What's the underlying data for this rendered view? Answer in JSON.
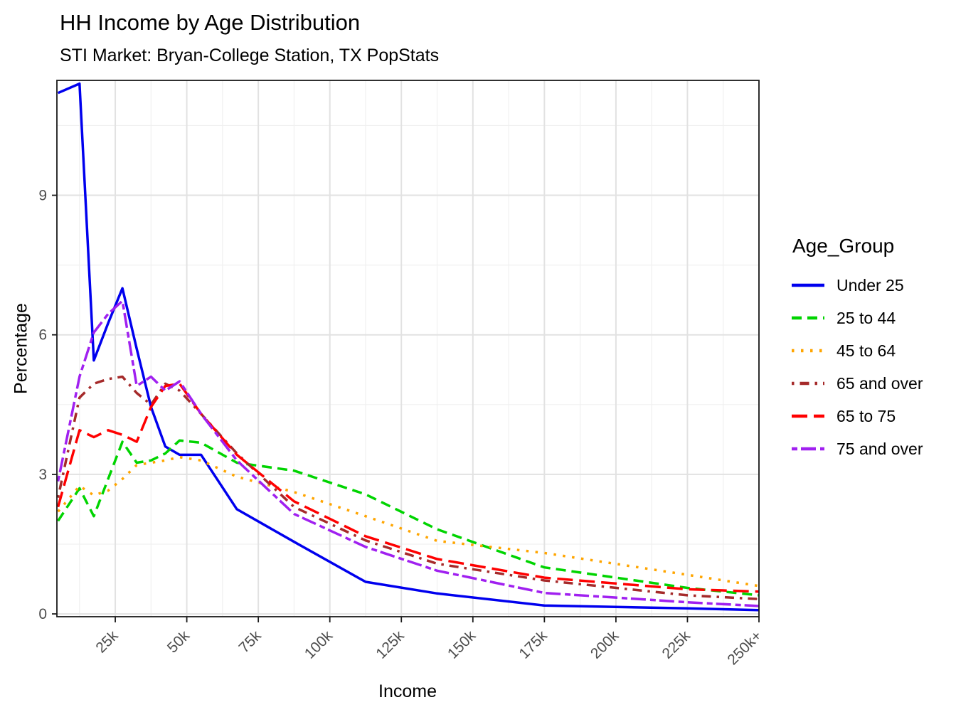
{
  "chart_data": {
    "type": "line",
    "title": "HH Income by Age Distribution",
    "subtitle": "STI Market: Bryan-College Station, TX PopStats",
    "xlabel": "Income",
    "ylabel": "Percentage",
    "legend_title": "Age_Group",
    "legend_position": "right",
    "grid": true,
    "x_unit": "thousands of dollars",
    "x_thousands": [
      5,
      12.5,
      17.5,
      22.5,
      27.5,
      32.5,
      37.5,
      42.5,
      47.5,
      55,
      67.5,
      87.5,
      112.5,
      137.5,
      175,
      225,
      250
    ],
    "x_range": [
      4.6,
      250
    ],
    "y_range": [
      -0.06,
      11.47
    ],
    "x_ticks": [
      {
        "value": 25,
        "label": "25k"
      },
      {
        "value": 50,
        "label": "50k"
      },
      {
        "value": 75,
        "label": "75k"
      },
      {
        "value": 100,
        "label": "100k"
      },
      {
        "value": 125,
        "label": "125k"
      },
      {
        "value": 150,
        "label": "150k"
      },
      {
        "value": 175,
        "label": "175k"
      },
      {
        "value": 200,
        "label": "200k"
      },
      {
        "value": 225,
        "label": "225k"
      },
      {
        "value": 250,
        "label": "250k+"
      }
    ],
    "y_ticks": [
      {
        "value": 0,
        "label": "0"
      },
      {
        "value": 3,
        "label": "3"
      },
      {
        "value": 6,
        "label": "6"
      },
      {
        "value": 9,
        "label": "9"
      }
    ],
    "x_minor": [
      12.5,
      37.5,
      62.5,
      87.5,
      112.5,
      137.5,
      162.5,
      187.5,
      212.5,
      237.5
    ],
    "y_minor": [
      1.5,
      4.5,
      7.5,
      10.5
    ],
    "series": [
      {
        "name": "Under 25",
        "color": "#0000EE",
        "linetype": "solid",
        "values": [
          11.2,
          11.4,
          5.45,
          6.25,
          7.0,
          5.7,
          4.45,
          3.6,
          3.42,
          3.42,
          2.25,
          1.55,
          0.69,
          0.44,
          0.18,
          0.12,
          0.08
        ]
      },
      {
        "name": "25 to 44",
        "color": "#00D400",
        "linetype": "dashed",
        "values": [
          2.0,
          2.7,
          2.1,
          2.9,
          3.7,
          3.25,
          3.3,
          3.45,
          3.73,
          3.68,
          3.25,
          3.08,
          2.57,
          1.82,
          1.0,
          0.56,
          0.4
        ]
      },
      {
        "name": "45 to 64",
        "color": "#FFA500",
        "linetype": "dotted",
        "values": [
          2.2,
          2.75,
          2.55,
          2.65,
          2.9,
          3.2,
          3.25,
          3.3,
          3.37,
          3.3,
          2.95,
          2.62,
          2.1,
          1.57,
          1.31,
          0.84,
          0.6
        ]
      },
      {
        "name": "65 and over",
        "color": "#A52A2A",
        "linetype": "dotdash",
        "values": [
          2.5,
          4.65,
          4.95,
          5.05,
          5.1,
          4.75,
          4.5,
          4.95,
          4.8,
          4.3,
          3.45,
          2.3,
          1.58,
          1.08,
          0.72,
          0.4,
          0.32
        ]
      },
      {
        "name": "65 to 75",
        "color": "#FF0000",
        "linetype": "longdash",
        "values": [
          2.3,
          3.95,
          3.8,
          3.95,
          3.85,
          3.7,
          4.45,
          4.9,
          4.95,
          4.3,
          3.42,
          2.42,
          1.67,
          1.18,
          0.78,
          0.53,
          0.48
        ]
      },
      {
        "name": "75 and over",
        "color": "#A020F0",
        "linetype": "twodash",
        "values": [
          2.85,
          5.1,
          6.05,
          6.45,
          6.73,
          4.9,
          5.1,
          4.8,
          5.0,
          4.3,
          3.3,
          2.15,
          1.44,
          0.93,
          0.45,
          0.25,
          0.17
        ]
      }
    ]
  }
}
